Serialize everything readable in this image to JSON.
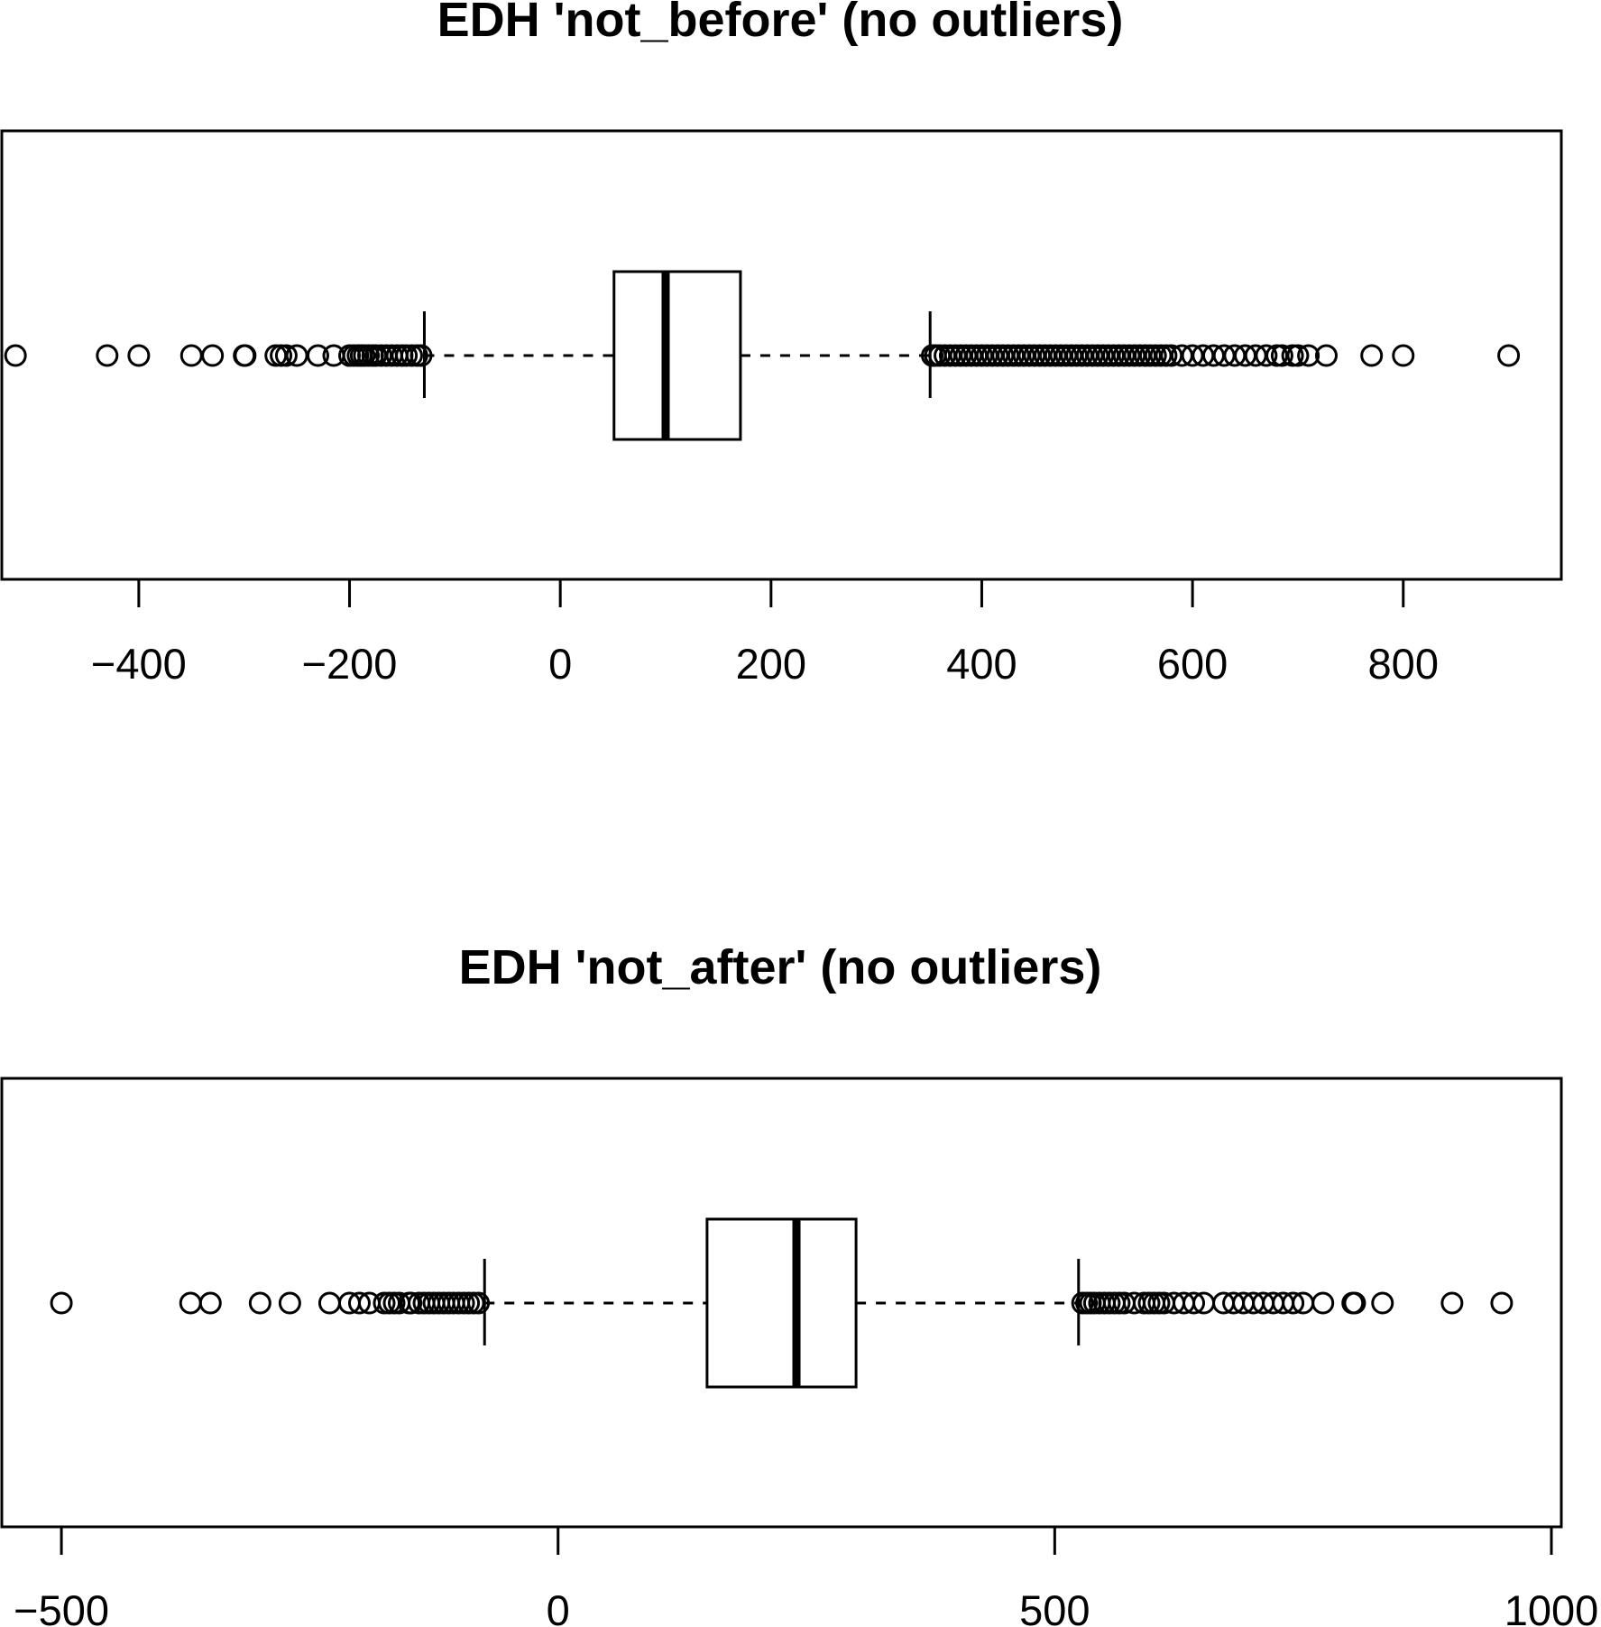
{
  "chart_data": [
    {
      "type": "boxplot",
      "orientation": "horizontal",
      "title": "EDH 'not_before' (no outliers)",
      "xlim": [
        -530,
        950
      ],
      "ticks": [
        -400,
        -200,
        0,
        200,
        400,
        600,
        800
      ],
      "tick_labels": [
        "−400",
        "−200",
        "0",
        "200",
        "400",
        "600",
        "800"
      ],
      "box": {
        "whisker_low": -129,
        "q1": 51,
        "median": 100,
        "q3": 171,
        "whisker_high": 351
      },
      "outliers": [
        -517,
        -430,
        -400,
        -350,
        -330,
        -300,
        -299,
        -270,
        -265,
        -260,
        -250,
        -230,
        -215,
        -200,
        -196,
        -192,
        -189,
        -186,
        -182,
        -178,
        -175,
        -170,
        -165,
        -160,
        -155,
        -150,
        -146,
        -141,
        -136,
        -132,
        353,
        356,
        360,
        365,
        370,
        375,
        380,
        385,
        390,
        395,
        400,
        405,
        410,
        415,
        420,
        425,
        430,
        435,
        440,
        445,
        450,
        455,
        460,
        465,
        470,
        475,
        480,
        485,
        490,
        495,
        500,
        505,
        510,
        515,
        520,
        525,
        530,
        535,
        540,
        545,
        550,
        555,
        560,
        565,
        570,
        575,
        580,
        590,
        600,
        610,
        620,
        630,
        640,
        650,
        660,
        670,
        680,
        685,
        695,
        700,
        710,
        727,
        770,
        800,
        900
      ],
      "grid": false
    },
    {
      "type": "boxplot",
      "orientation": "horizontal",
      "title": "EDH 'not_after' (no outliers)",
      "xlim": [
        -560,
        1010
      ],
      "ticks": [
        -500,
        0,
        500,
        1000
      ],
      "tick_labels": [
        "−500",
        "0",
        "500",
        "1000"
      ],
      "box": {
        "whisker_low": -74,
        "q1": 150,
        "median": 240,
        "q3": 300,
        "whisker_high": 524
      },
      "outliers": [
        -500,
        -370,
        -350,
        -300,
        -270,
        -230,
        -210,
        -200,
        -190,
        -175,
        -170,
        -165,
        -160,
        -150,
        -148,
        -140,
        -135,
        -130,
        -125,
        -120,
        -115,
        -110,
        -105,
        -100,
        -95,
        -90,
        -85,
        -80,
        528,
        532,
        536,
        540,
        545,
        550,
        555,
        560,
        565,
        570,
        580,
        590,
        595,
        600,
        605,
        610,
        620,
        630,
        640,
        650,
        670,
        680,
        690,
        700,
        710,
        720,
        730,
        740,
        750,
        770,
        800,
        802,
        830,
        900,
        950
      ],
      "grid": false
    }
  ]
}
